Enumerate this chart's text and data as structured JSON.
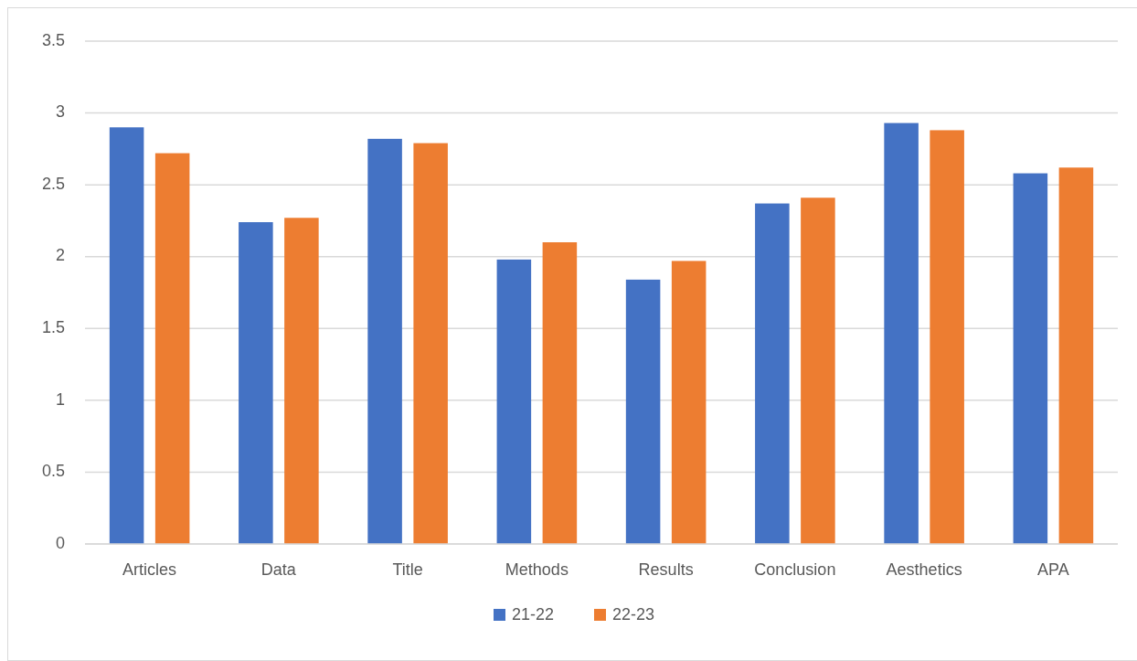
{
  "chart_data": {
    "type": "bar",
    "categories": [
      "Articles",
      "Data",
      "Title",
      "Methods",
      "Results",
      "Conclusion",
      "Aesthetics",
      "APA"
    ],
    "series": [
      {
        "name": "21-22",
        "color": "#4472c4",
        "values": [
          2.9,
          2.24,
          2.82,
          1.98,
          1.84,
          2.37,
          2.93,
          2.58
        ]
      },
      {
        "name": "22-23",
        "color": "#ed7d31",
        "values": [
          2.72,
          2.27,
          2.79,
          2.1,
          1.97,
          2.41,
          2.88,
          2.62
        ]
      }
    ],
    "ylim": [
      0,
      3.5
    ],
    "yticks": [
      0,
      0.5,
      1,
      1.5,
      2,
      2.5,
      3,
      3.5
    ],
    "grid": "y",
    "legend": "bottom"
  }
}
